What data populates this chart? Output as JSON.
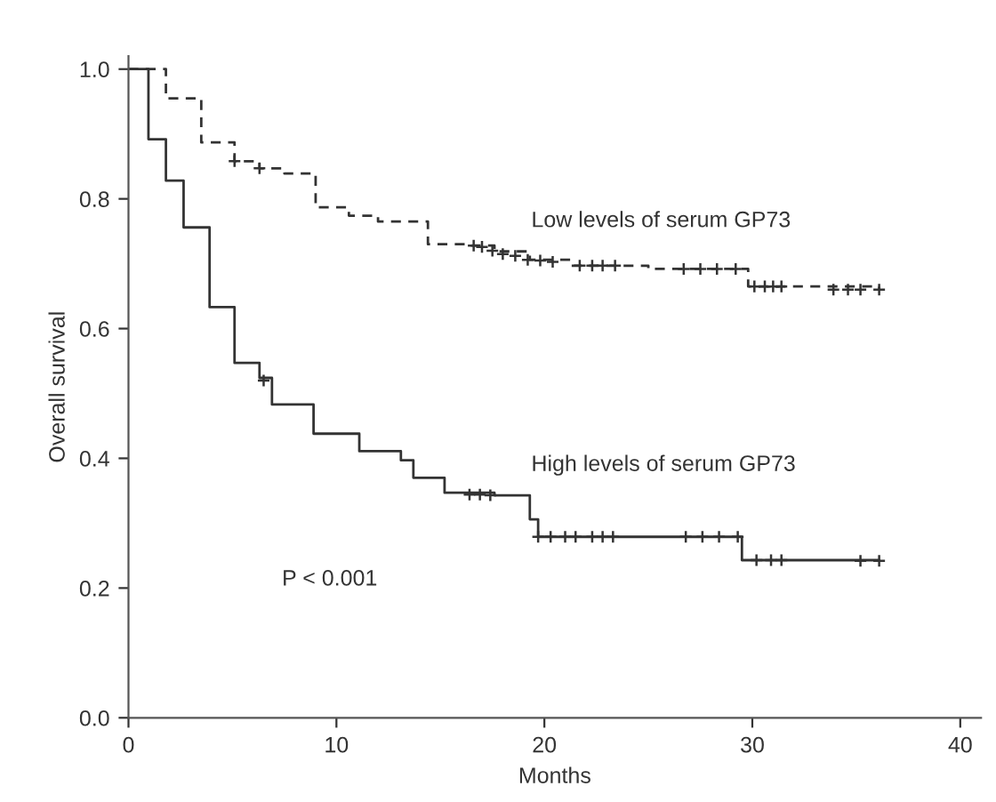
{
  "chart_data": {
    "type": "step",
    "xlabel": "Months",
    "ylabel": "Overall survival",
    "xlim": [
      0,
      41
    ],
    "ylim": [
      0,
      1.02
    ],
    "xticks": [
      0,
      10,
      20,
      30,
      40
    ],
    "yticks": [
      {
        "value": 0,
        "label": "0.0"
      },
      {
        "value": 0.2,
        "label": "0.2"
      },
      {
        "value": 0.4,
        "label": "0.4"
      },
      {
        "value": 0.6,
        "label": "0.6"
      },
      {
        "value": 0.8,
        "label": "0.8"
      },
      {
        "value": 1,
        "label": "1.0"
      }
    ],
    "grid": false,
    "legend": false,
    "annotations": [
      "P < 0.001"
    ],
    "series": [
      {
        "name": "Low levels of serum GP73",
        "color": "#333333",
        "line_style": "dashed",
        "marker": "none",
        "x": [
          0,
          1.8,
          3.5,
          5.1,
          6.3,
          7.5,
          9.0,
          10.6,
          12.0,
          14.4,
          16.5,
          17.6,
          19.3,
          21.3,
          25.0,
          29.8,
          36.1
        ],
        "values": [
          1.0,
          0.955,
          0.887,
          0.858,
          0.847,
          0.839,
          0.787,
          0.774,
          0.765,
          0.73,
          0.728,
          0.719,
          0.706,
          0.697,
          0.692,
          0.665,
          0.66
        ]
      },
      {
        "name": "High levels of serum GP73",
        "color": "#333333",
        "line_style": "solid",
        "marker": "none",
        "x": [
          0,
          0.96,
          1.8,
          2.65,
          3.9,
          5.1,
          6.3,
          6.9,
          8.9,
          11.1,
          13.1,
          13.7,
          15.2,
          17.6,
          19.3,
          19.7,
          29.5,
          36.1
        ],
        "values": [
          1.0,
          0.892,
          0.828,
          0.756,
          0.633,
          0.547,
          0.524,
          0.483,
          0.438,
          0.411,
          0.397,
          0.37,
          0.347,
          0.343,
          0.306,
          0.279,
          0.243,
          0.242
        ]
      },
      {
        "type": "scatter",
        "color": "#333333",
        "marker": "cross",
        "x": [
          5.1,
          6.3,
          16.6,
          17.0,
          17.5,
          18.0,
          18.6,
          19.2,
          19.8,
          20.4,
          21.7,
          22.3,
          22.8,
          23.4,
          26.7,
          27.5,
          28.3,
          29.2,
          30.1,
          30.6,
          31.0,
          31.4,
          33.9,
          34.6,
          35.2,
          36.1
        ],
        "values": [
          0.858,
          0.847,
          0.728,
          0.726,
          0.72,
          0.715,
          0.712,
          0.706,
          0.705,
          0.703,
          0.697,
          0.697,
          0.697,
          0.697,
          0.692,
          0.692,
          0.692,
          0.692,
          0.665,
          0.665,
          0.665,
          0.665,
          0.66,
          0.66,
          0.66,
          0.66
        ]
      },
      {
        "type": "scatter",
        "color": "#333333",
        "marker": "cross",
        "x": [
          6.5,
          16.4,
          16.9,
          17.4,
          19.7,
          20.3,
          21.0,
          21.5,
          22.3,
          22.8,
          23.3,
          26.8,
          27.6,
          28.4,
          29.3,
          30.2,
          30.9,
          31.4,
          35.2,
          36.1
        ],
        "values": [
          0.52,
          0.344,
          0.344,
          0.343,
          0.279,
          0.279,
          0.279,
          0.279,
          0.279,
          0.279,
          0.279,
          0.279,
          0.279,
          0.279,
          0.279,
          0.243,
          0.243,
          0.243,
          0.242,
          0.242
        ]
      }
    ]
  }
}
